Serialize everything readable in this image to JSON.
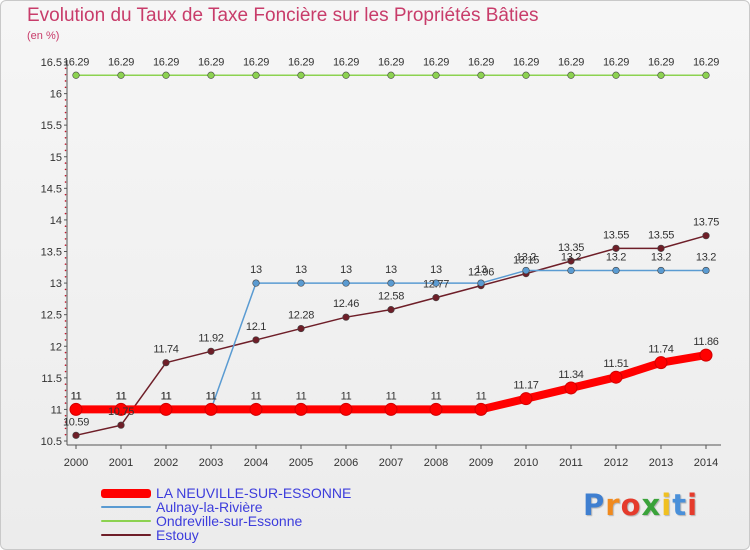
{
  "chart_data": {
    "type": "line",
    "title": "Evolution du Taux de Taxe Foncière sur les Propriétés Bâties",
    "unit_label": "(en %)",
    "x": [
      "2000",
      "2001",
      "2002",
      "2003",
      "2004",
      "2005",
      "2006",
      "2007",
      "2008",
      "2009",
      "2010",
      "2011",
      "2012",
      "2013",
      "2014"
    ],
    "y_ticks": [
      "10.5",
      "11",
      "11.5",
      "12",
      "12.5",
      "13",
      "13.5",
      "14",
      "14.5",
      "15",
      "15.5",
      "16",
      "16.5"
    ],
    "ylim": [
      10.5,
      16.5
    ],
    "grid": false,
    "legend_position": "bottom-left",
    "series": [
      {
        "name": "Estouy",
        "color": "#6e1e28",
        "values": [
          10.59,
          10.75,
          11.74,
          11.92,
          12.1,
          12.28,
          12.46,
          12.58,
          12.77,
          12.96,
          13.15,
          13.35,
          13.55,
          13.55,
          13.75
        ],
        "labels": [
          "10.59",
          "10.75",
          "11.74",
          "11.92",
          "12.1",
          "12.28",
          "12.46",
          "12.58",
          "12.77",
          "12.96",
          "13.15",
          "13.35",
          "13.55",
          "13.55",
          "13.75"
        ]
      },
      {
        "name": "Ondreville-sur-Essonne",
        "color": "#8cd250",
        "values": [
          16.29,
          16.29,
          16.29,
          16.29,
          16.29,
          16.29,
          16.29,
          16.29,
          16.29,
          16.29,
          16.29,
          16.29,
          16.29,
          16.29,
          16.29
        ],
        "labels": [
          "16.29",
          "16.29",
          "16.29",
          "16.29",
          "16.29",
          "16.29",
          "16.29",
          "16.29",
          "16.29",
          "16.29",
          "16.29",
          "16.29",
          "16.29",
          "16.29",
          "16.29"
        ]
      },
      {
        "name": "Aulnay-la-Rivière",
        "color": "#5a9bd2",
        "values": [
          11,
          11,
          11,
          11,
          13,
          13,
          13,
          13,
          13,
          13,
          13.2,
          13.2,
          13.2,
          13.2,
          13.2
        ],
        "labels": [
          "11",
          "11",
          "11",
          "11",
          "13",
          "13",
          "13",
          "13",
          "13",
          "13",
          "13.2",
          "13.2",
          "13.2",
          "13.2",
          "13.2"
        ]
      },
      {
        "name": "LA NEUVILLE-SUR-ESSONNE",
        "color": "#ff0000",
        "values": [
          11,
          11,
          11,
          11,
          11,
          11,
          11,
          11,
          11,
          11,
          11.17,
          11.34,
          11.51,
          11.74,
          11.86
        ],
        "labels": [
          "11",
          "11",
          "11",
          "11",
          "11",
          "11",
          "11",
          "11",
          "11",
          "11",
          "11.17",
          "11.34",
          "11.51",
          "11.74",
          "11.86"
        ]
      }
    ],
    "legend": [
      {
        "name": "LA NEUVILLE-SUR-ESSONNE",
        "color": "#ff0000"
      },
      {
        "name": "Aulnay-la-Rivière",
        "color": "#5a9bd2"
      },
      {
        "name": "Ondreville-sur-Essonne",
        "color": "#8cd250"
      },
      {
        "name": "Estouy",
        "color": "#6e1e28"
      }
    ]
  },
  "logo": {
    "letters": [
      "P",
      "r",
      "o",
      "x",
      "i",
      "t",
      "i"
    ],
    "colors": [
      "#3f7fd0",
      "#f08a1e",
      "#e53b2c",
      "#3aa23a",
      "#f0c020",
      "#4a90d9",
      "#e53b2c"
    ]
  }
}
